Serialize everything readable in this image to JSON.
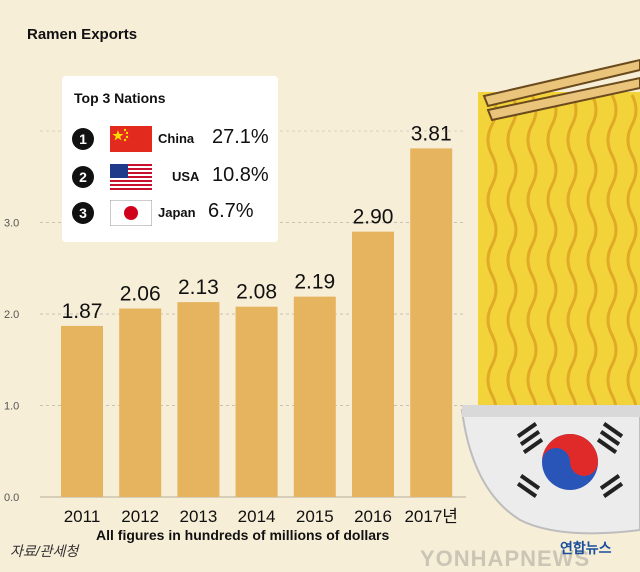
{
  "chart_data": {
    "type": "bar",
    "title": "Ramen Exports",
    "categories": [
      "2011",
      "2012",
      "2013",
      "2014",
      "2015",
      "2016",
      "2017년"
    ],
    "values": [
      1.87,
      2.06,
      2.13,
      2.08,
      2.19,
      2.9,
      3.81
    ],
    "value_labels": [
      "1.87",
      "2.06",
      "2.13",
      "2.08",
      "2.19",
      "2.90",
      "3.81"
    ],
    "y_ticks": [
      "0.0",
      "1.0",
      "2.0",
      "3.0"
    ],
    "ylim": [
      0,
      4.0
    ],
    "grid": true,
    "bar_color": "#e6b45e",
    "note": "All figures in hundreds of millions of dollars"
  },
  "legend": {
    "title": "Top 3 Nations",
    "items": [
      {
        "rank": "1",
        "country": "China",
        "share": "27.1%",
        "flag": "china-flag"
      },
      {
        "rank": "2",
        "country": "USA",
        "share": "10.8%",
        "flag": "usa-flag"
      },
      {
        "rank": "3",
        "country": "Japan",
        "share": "6.7%",
        "flag": "japan-flag"
      }
    ]
  },
  "source": "자료/관세청",
  "watermark": "YONHAPNEWS",
  "brand": "연합뉴스",
  "colors": {
    "background": "#f7eed8",
    "bar": "#e6b45e",
    "noodle": "#f2d43a",
    "bowl": "#e8e8e8"
  }
}
